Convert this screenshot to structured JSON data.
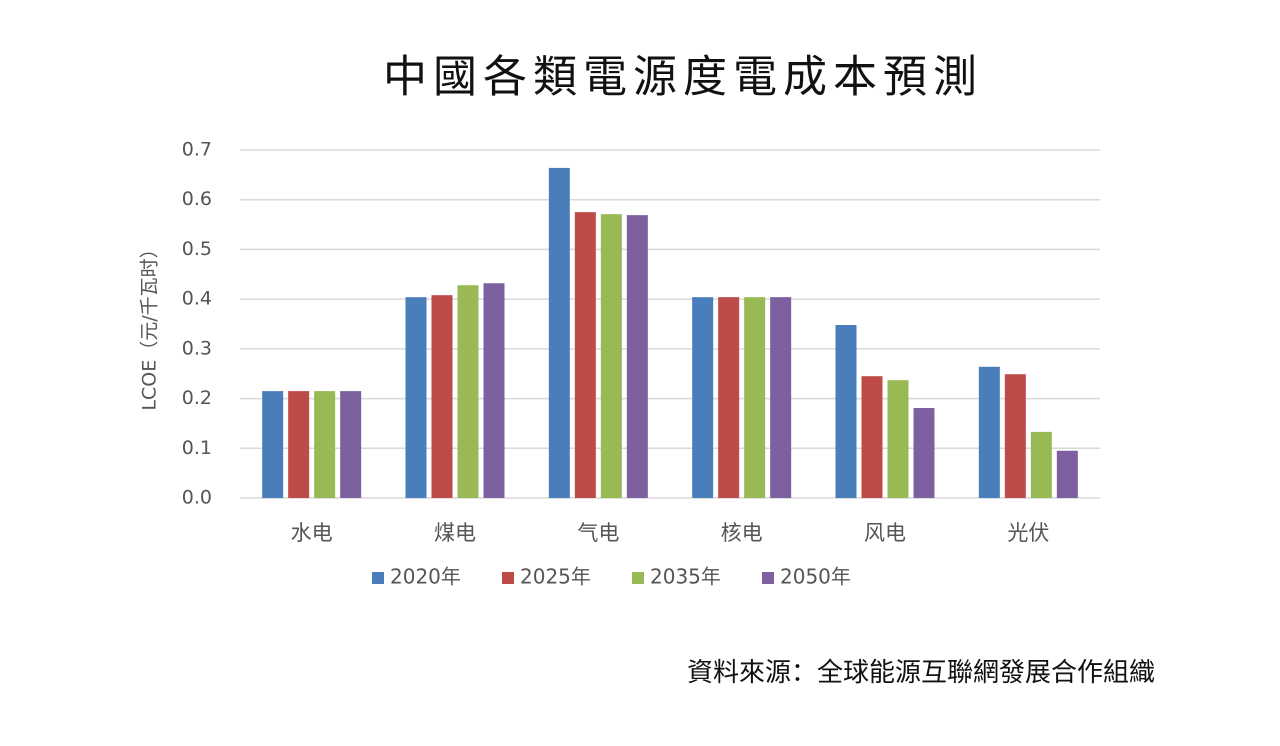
{
  "chart_data": {
    "type": "bar",
    "title": "中國各類電源度電成本預測",
    "y_label": "LCOE（元/千瓦时）",
    "source": "資料來源：全球能源互聯網發展合作組織",
    "categories": [
      "水电",
      "煤电",
      "气电",
      "核电",
      "风电",
      "光伏"
    ],
    "series": [
      {
        "name": "2020年",
        "color": "#4a7ebb",
        "values": [
          0.215,
          0.404,
          0.664,
          0.404,
          0.348,
          0.264
        ]
      },
      {
        "name": "2025年",
        "color": "#be4b48",
        "values": [
          0.215,
          0.408,
          0.575,
          0.404,
          0.245,
          0.249
        ]
      },
      {
        "name": "2035年",
        "color": "#98b954",
        "values": [
          0.215,
          0.428,
          0.571,
          0.404,
          0.237,
          0.133
        ]
      },
      {
        "name": "2050年",
        "color": "#7d60a0",
        "values": [
          0.215,
          0.432,
          0.569,
          0.404,
          0.181,
          0.095
        ]
      }
    ],
    "ylim": [
      0,
      0.7
    ],
    "yticks": [
      {
        "value": 0,
        "label": "0.0"
      },
      0.1,
      0.2,
      0.3,
      0.4,
      0.5,
      0.6,
      0.7
    ],
    "grid": true,
    "legend": "bottom"
  }
}
